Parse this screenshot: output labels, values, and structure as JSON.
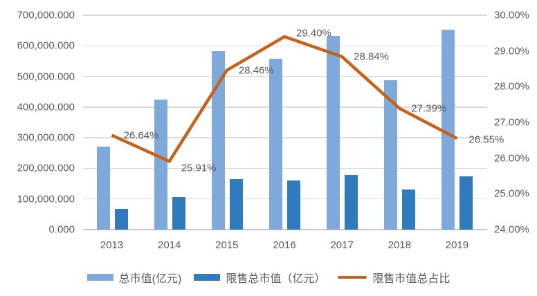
{
  "colors": {
    "bar_total": "#7fa9db",
    "bar_restricted": "#2f7bbe",
    "line_ratio": "#c8621a",
    "gridline": "#d9d9d9",
    "axis_line": "#c6c6c6",
    "text": "#595959",
    "background": "#ffffff"
  },
  "legend": {
    "items": [
      {
        "label": "总市值(亿元)",
        "swatch": "bar",
        "color": "#7fa9db"
      },
      {
        "label": "限售总市值（亿元）",
        "swatch": "bar",
        "color": "#2f7bbe"
      },
      {
        "label": "限售市值总占比",
        "swatch": "line",
        "color": "#c8621a"
      }
    ]
  },
  "chart_data": {
    "type": "combo",
    "categories": [
      "2013",
      "2014",
      "2015",
      "2016",
      "2017",
      "2018",
      "2019"
    ],
    "series": [
      {
        "name": "总市值(亿元)",
        "type": "bar",
        "axis": "left",
        "color": "#7fa9db",
        "values": [
          272000,
          425000,
          583000,
          557000,
          632000,
          487000,
          653000
        ]
      },
      {
        "name": "限售总市值（亿元）",
        "type": "bar",
        "axis": "left",
        "color": "#2f7bbe",
        "values": [
          68000,
          107000,
          164000,
          160000,
          179000,
          130000,
          173000
        ]
      },
      {
        "name": "限售市值总占比",
        "type": "line",
        "axis": "right",
        "color": "#c8621a",
        "values": [
          26.64,
          25.91,
          28.46,
          29.4,
          28.84,
          27.39,
          26.55
        ],
        "point_labels": [
          "26.64%",
          "25.91%",
          "28.46%",
          "29.40%",
          "28.84%",
          "27.39%",
          "26.55%"
        ]
      }
    ],
    "left_axis": {
      "min": 0,
      "max": 700000,
      "step": 100000,
      "tick_labels": [
        "700,000.000",
        "600,000.000",
        "500,000.000",
        "400,000.000",
        "300,000.000",
        "200,000.000",
        "100,000.000",
        "0.000"
      ]
    },
    "right_axis": {
      "min": 24,
      "max": 30,
      "step": 1,
      "tick_labels": [
        "30.00%",
        "29.00%",
        "28.00%",
        "27.00%",
        "26.00%",
        "25.00%",
        "24.00%"
      ]
    },
    "grid": true,
    "legend_position": "bottom",
    "title": ""
  }
}
